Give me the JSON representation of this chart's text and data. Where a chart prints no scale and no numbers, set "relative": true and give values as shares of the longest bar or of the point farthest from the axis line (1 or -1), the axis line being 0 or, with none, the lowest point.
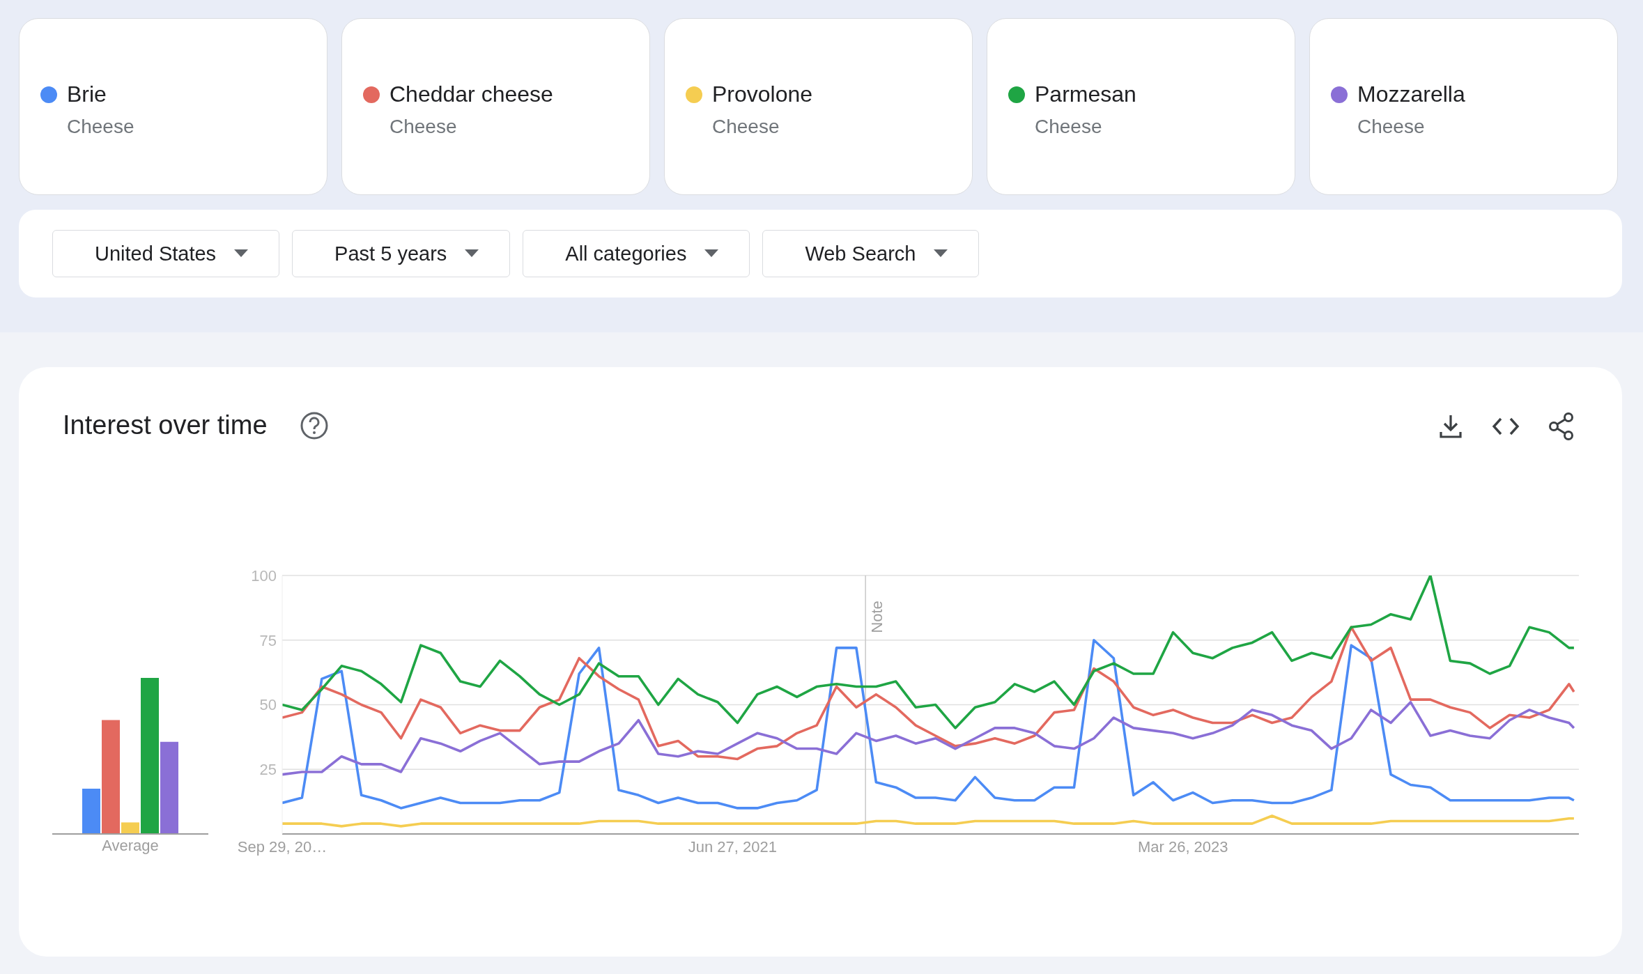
{
  "chart_data": [
    {
      "type": "other",
      "annotations": [
        "Cheese",
        "Cheese",
        "Cheese",
        "Cheese",
        "Cheese",
        "United States",
        "Past 5 years",
        "All categories",
        "Web Search"
      ]
    },
    {
      "type": "bar",
      "relative": true,
      "categories": [
        "Average"
      ],
      "series": [
        {
          "color": "#4c8bf5",
          "values": [
            0.29
          ]
        },
        {
          "color": "#e3695f",
          "values": [
            0.73
          ]
        },
        {
          "color": "#f5cd51",
          "values": [
            0.074
          ]
        },
        {
          "color": "#1fa544",
          "values": [
            1
          ]
        },
        {
          "color": "#8a6fd6",
          "values": [
            0.59
          ]
        }
      ]
    },
    {
      "type": "line",
      "title": "Interest over time",
      "legend": "top",
      "grid": "y",
      "marker": "none",
      "x": [
        "2019-09-29",
        "2019-10-27",
        "2019-11-24",
        "2019-12-22",
        "2020-01-19",
        "2020-02-16",
        "2020-03-15",
        "2020-04-12",
        "2020-05-10",
        "2020-06-07",
        "2020-07-05",
        "2020-08-02",
        "2020-08-30",
        "2020-09-27",
        "2020-10-25",
        "2020-11-22",
        "2020-12-20",
        "2021-01-17",
        "2021-02-14",
        "2021-03-14",
        "2021-04-11",
        "2021-05-09",
        "2021-06-06",
        "2021-07-04",
        "2021-08-01",
        "2021-08-29",
        "2021-09-26",
        "2021-10-24",
        "2021-11-21",
        "2021-12-19",
        "2022-01-16",
        "2022-02-13",
        "2022-03-13",
        "2022-04-10",
        "2022-05-08",
        "2022-06-05",
        "2022-07-03",
        "2022-07-31",
        "2022-08-28",
        "2022-09-25",
        "2022-10-23",
        "2022-11-20",
        "2022-12-18",
        "2023-01-15",
        "2023-02-12",
        "2023-03-12",
        "2023-04-09",
        "2023-05-07",
        "2023-06-04",
        "2023-07-02",
        "2023-07-30",
        "2023-08-27",
        "2023-09-24",
        "2023-10-22",
        "2023-11-19",
        "2023-12-17",
        "2024-01-14",
        "2024-02-11",
        "2024-03-10",
        "2024-04-07",
        "2024-05-05",
        "2024-06-02",
        "2024-06-30",
        "2024-07-28",
        "2024-08-25",
        "2024-09-22",
        "2024-09-29"
      ],
      "xlim": [
        "2019-09-29",
        "2024-10-06"
      ],
      "xticks": [
        {
          "value": "2019-09-29",
          "label": "Sep 29, 20…"
        },
        {
          "value": "2021-06-27",
          "label": "Jun 27, 2021"
        },
        {
          "value": "2023-03-26",
          "label": "Mar 26, 2023"
        }
      ],
      "ylim": [
        0,
        100
      ],
      "yticks": [
        25,
        50,
        75,
        100
      ],
      "ref_lines": [
        {
          "axis": "x",
          "value": "2022-01-01",
          "label": "Note",
          "color": "#c8c8c8"
        }
      ],
      "series": [
        {
          "name": "Brie",
          "color": "#4c8bf5",
          "values": [
            12,
            14,
            60,
            63,
            15,
            13,
            10,
            12,
            14,
            12,
            12,
            12,
            13,
            13,
            16,
            62,
            72,
            17,
            15,
            12,
            14,
            12,
            12,
            10,
            10,
            12,
            13,
            17,
            72,
            72,
            20,
            18,
            14,
            14,
            13,
            22,
            14,
            13,
            13,
            18,
            18,
            75,
            68,
            15,
            20,
            13,
            16,
            12,
            13,
            13,
            12,
            12,
            14,
            17,
            73,
            68,
            23,
            19,
            18,
            13,
            13,
            13,
            13,
            13,
            14,
            14,
            13
          ]
        },
        {
          "name": "Cheddar cheese",
          "color": "#e3695f",
          "values": [
            45,
            47,
            57,
            54,
            50,
            47,
            37,
            52,
            49,
            39,
            42,
            40,
            40,
            49,
            52,
            68,
            61,
            56,
            52,
            34,
            36,
            30,
            30,
            29,
            33,
            34,
            39,
            42,
            57,
            49,
            54,
            49,
            42,
            38,
            34,
            35,
            37,
            35,
            38,
            47,
            48,
            64,
            59,
            49,
            46,
            48,
            45,
            43,
            43,
            46,
            43,
            45,
            53,
            59,
            80,
            67,
            72,
            52,
            52,
            49,
            47,
            41,
            46,
            45,
            48,
            58,
            55
          ]
        },
        {
          "name": "Provolone",
          "color": "#f5cd51",
          "values": [
            4,
            4,
            4,
            3,
            4,
            4,
            3,
            4,
            4,
            4,
            4,
            4,
            4,
            4,
            4,
            4,
            5,
            5,
            5,
            4,
            4,
            4,
            4,
            4,
            4,
            4,
            4,
            4,
            4,
            4,
            5,
            5,
            4,
            4,
            4,
            5,
            5,
            5,
            5,
            5,
            4,
            4,
            4,
            5,
            4,
            4,
            4,
            4,
            4,
            4,
            7,
            4,
            4,
            4,
            4,
            4,
            5,
            5,
            5,
            5,
            5,
            5,
            5,
            5,
            5,
            6,
            6
          ]
        },
        {
          "name": "Parmesan",
          "color": "#1fa544",
          "values": [
            50,
            48,
            56,
            65,
            63,
            58,
            51,
            73,
            70,
            59,
            57,
            67,
            61,
            54,
            50,
            54,
            66,
            61,
            61,
            50,
            60,
            54,
            51,
            43,
            54,
            57,
            53,
            57,
            58,
            57,
            57,
            59,
            49,
            50,
            41,
            49,
            51,
            58,
            55,
            59,
            50,
            63,
            66,
            62,
            62,
            78,
            70,
            68,
            72,
            74,
            78,
            67,
            70,
            68,
            80,
            81,
            85,
            83,
            100,
            67,
            66,
            62,
            65,
            80,
            78,
            72,
            72
          ]
        },
        {
          "name": "Mozzarella",
          "color": "#8a6fd6",
          "values": [
            23,
            24,
            24,
            30,
            27,
            27,
            24,
            37,
            35,
            32,
            36,
            39,
            33,
            27,
            28,
            28,
            32,
            35,
            44,
            31,
            30,
            32,
            31,
            35,
            39,
            37,
            33,
            33,
            31,
            39,
            36,
            38,
            35,
            37,
            33,
            37,
            41,
            41,
            39,
            34,
            33,
            37,
            45,
            41,
            40,
            39,
            37,
            39,
            42,
            48,
            46,
            42,
            40,
            33,
            37,
            48,
            43,
            51,
            38,
            40,
            38,
            37,
            44,
            48,
            45,
            43,
            41
          ]
        }
      ]
    }
  ]
}
